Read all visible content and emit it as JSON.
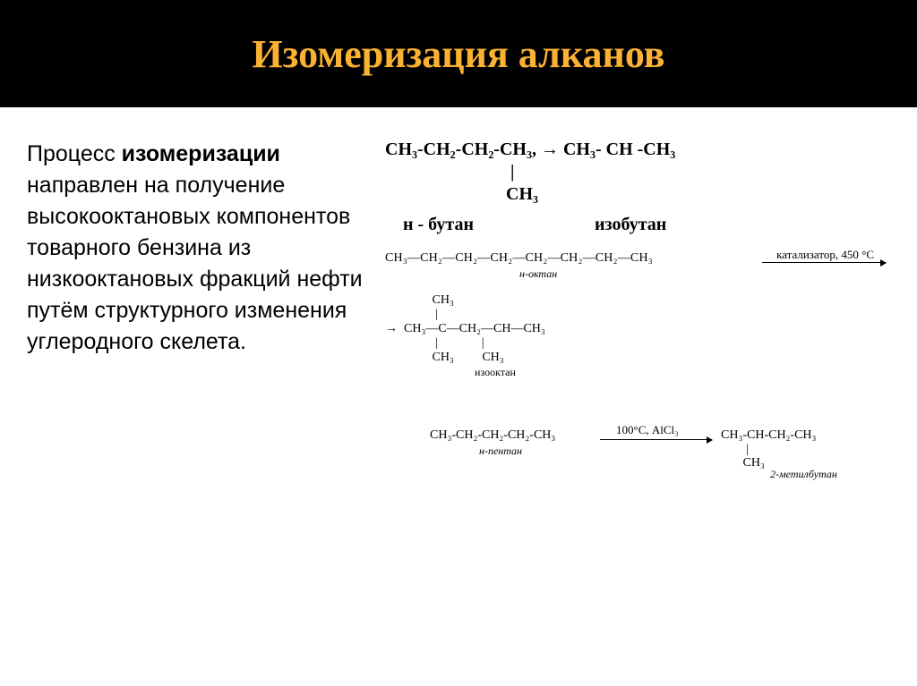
{
  "title": "Изомеризация алканов",
  "body_text": "Процесс изомеризации направлен на получение высокооктановых компонентов товарного бензина из низкооктановых фракций нефти путём структурного изменения углеродного скелета.",
  "bold_word": "изомеризации",
  "colors": {
    "title_bg": "#000000",
    "title_fg": "#f9b233",
    "page_bg": "#ffffff",
    "text": "#000000"
  },
  "typography": {
    "title_fontsize": 44,
    "body_fontsize": 25,
    "chem_main_fontsize": 20,
    "chem_small_fontsize": 14
  },
  "reaction1": {
    "line1": "CH₃-CH₂-CH₂-CH₃, → CH₃- CH -CH₃",
    "line2": "                            |",
    "line3": "                           CH₃",
    "label_left": "н - бутан",
    "label_right": "изобутан"
  },
  "reaction2": {
    "reactant": "CH₃—CH₂—CH₂—CH₂—CH₂—CH₂—CH₂—CH₃",
    "reactant_label": "н-октан",
    "conditions": "катализатор, 450 °С",
    "product_l1": "               CH₃",
    "product_l2": "                |",
    "product_l3": "→  CH₃—C—CH₂—CH—CH₃",
    "product_l4": "                |              |",
    "product_l5": "               CH₃         CH₃",
    "product_label": "изооктан"
  },
  "reaction3": {
    "reactant": "CH₃-CH₂-CH₂-CH₂-CH₃",
    "reactant_label": "н-пентан",
    "conditions": "100°С, AlCl₃",
    "product_l1": "CH₃-CH-CH₂-CH₃",
    "product_l2": "        |",
    "product_l3": "       CH₃",
    "product_label": "2-метилбутан"
  }
}
